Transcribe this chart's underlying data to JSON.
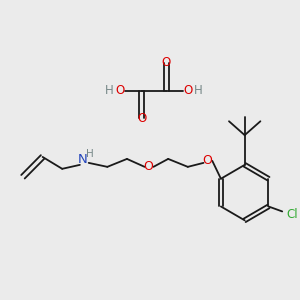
{
  "bg_color": "#ebebeb",
  "colors": {
    "C": "#1a1a1a",
    "O": "#dd0000",
    "N": "#2244bb",
    "Cl": "#33aa33",
    "H": "#778888",
    "bond": "#1a1a1a"
  },
  "figsize": [
    3.0,
    3.0
  ],
  "dpi": 100
}
